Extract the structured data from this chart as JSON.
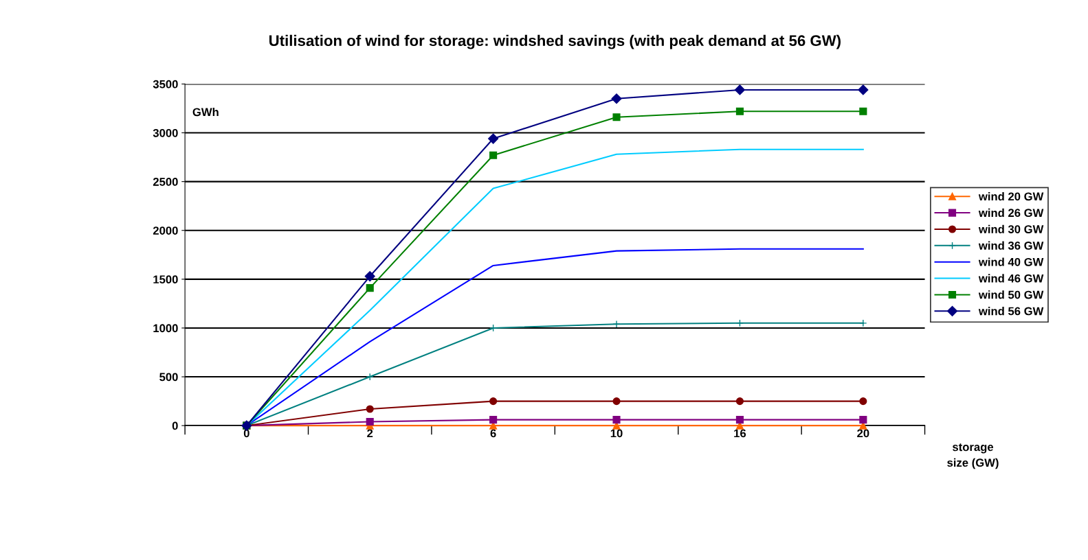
{
  "chart_data": {
    "type": "line",
    "title": "Utilisation of wind for storage: windshed savings (with peak demand at 56 GW)",
    "xlabel": "storage\nsize (GW)",
    "ylabel": "GWh",
    "categories": [
      "0",
      "2",
      "6",
      "10",
      "16",
      "20"
    ],
    "ylim": [
      0,
      3500
    ],
    "yticks": [
      0,
      500,
      1000,
      1500,
      2000,
      2500,
      3000,
      3500
    ],
    "grid": "y",
    "legend": "right",
    "line_style": "solid",
    "series": [
      {
        "name": "wind 20 GW",
        "color": "#ff6600",
        "marker": "triangle",
        "values": [
          0,
          0,
          0,
          0,
          0,
          0
        ]
      },
      {
        "name": "wind 26 GW",
        "color": "#800080",
        "marker": "square",
        "values": [
          0,
          40,
          60,
          60,
          60,
          60
        ]
      },
      {
        "name": "wind 30 GW",
        "color": "#800000",
        "marker": "circle",
        "values": [
          0,
          170,
          250,
          250,
          250,
          250
        ]
      },
      {
        "name": "wind 36 GW",
        "color": "#008080",
        "marker": "cross",
        "values": [
          0,
          500,
          1000,
          1040,
          1050,
          1050
        ]
      },
      {
        "name": "wind 40 GW",
        "color": "#0000ff",
        "marker": "none",
        "values": [
          0,
          860,
          1640,
          1790,
          1810,
          1810
        ]
      },
      {
        "name": "wind 46 GW",
        "color": "#00ccff",
        "marker": "none",
        "values": [
          0,
          1180,
          2430,
          2780,
          2830,
          2830
        ]
      },
      {
        "name": "wind 50 GW",
        "color": "#008000",
        "marker": "square",
        "values": [
          0,
          1410,
          2770,
          3160,
          3220,
          3220
        ]
      },
      {
        "name": "wind 56 GW",
        "color": "#000080",
        "marker": "diamond",
        "values": [
          0,
          1530,
          2940,
          3350,
          3440,
          3440
        ]
      }
    ]
  }
}
